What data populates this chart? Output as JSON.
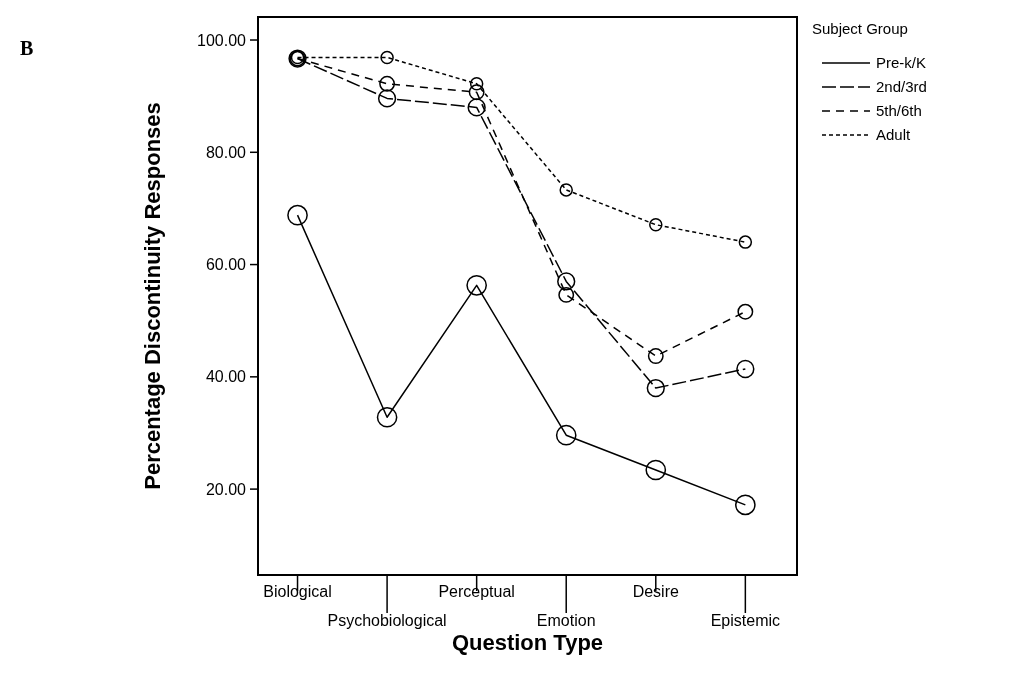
{
  "chart_data": {
    "type": "line",
    "xlabel": "Question Type",
    "ylabel": "Percentage Discontinuity Responses",
    "legend_title": "Subject Group",
    "legend": "top right",
    "marker": "circle",
    "grid": false,
    "annotations": [
      "B"
    ],
    "categories": [
      "Biological",
      "Psychobiological",
      "Perceptual",
      "Emotion",
      "Desire",
      "Epistemic"
    ],
    "ylim": [
      4.7,
      104.1
    ],
    "yticks": [
      {
        "value": 20,
        "label": "20.00"
      },
      {
        "value": 40,
        "label": "40.00"
      },
      {
        "value": 60,
        "label": "60.00"
      },
      {
        "value": 80,
        "label": "80.00"
      },
      {
        "value": 100,
        "label": "100.00"
      }
    ],
    "series": [
      {
        "name": "Pre-k/K",
        "color": "#000000",
        "line_style": "solid",
        "values": [
          68.8,
          32.8,
          56.3,
          29.6,
          23.4,
          17.2
        ]
      },
      {
        "name": "2nd/3rd",
        "color": "#000000",
        "line_style": "dashed",
        "values": [
          96.7,
          89.6,
          88.0,
          57.0,
          38.0,
          41.4
        ]
      },
      {
        "name": "5th/6th",
        "color": "#000000",
        "line_style": "dashed",
        "values": [
          96.7,
          92.2,
          90.7,
          54.6,
          43.7,
          51.6
        ]
      },
      {
        "name": "Adult",
        "color": "#000000",
        "line_style": "dotted",
        "values": [
          96.9,
          96.9,
          92.2,
          73.3,
          67.1,
          64.0
        ]
      }
    ]
  }
}
